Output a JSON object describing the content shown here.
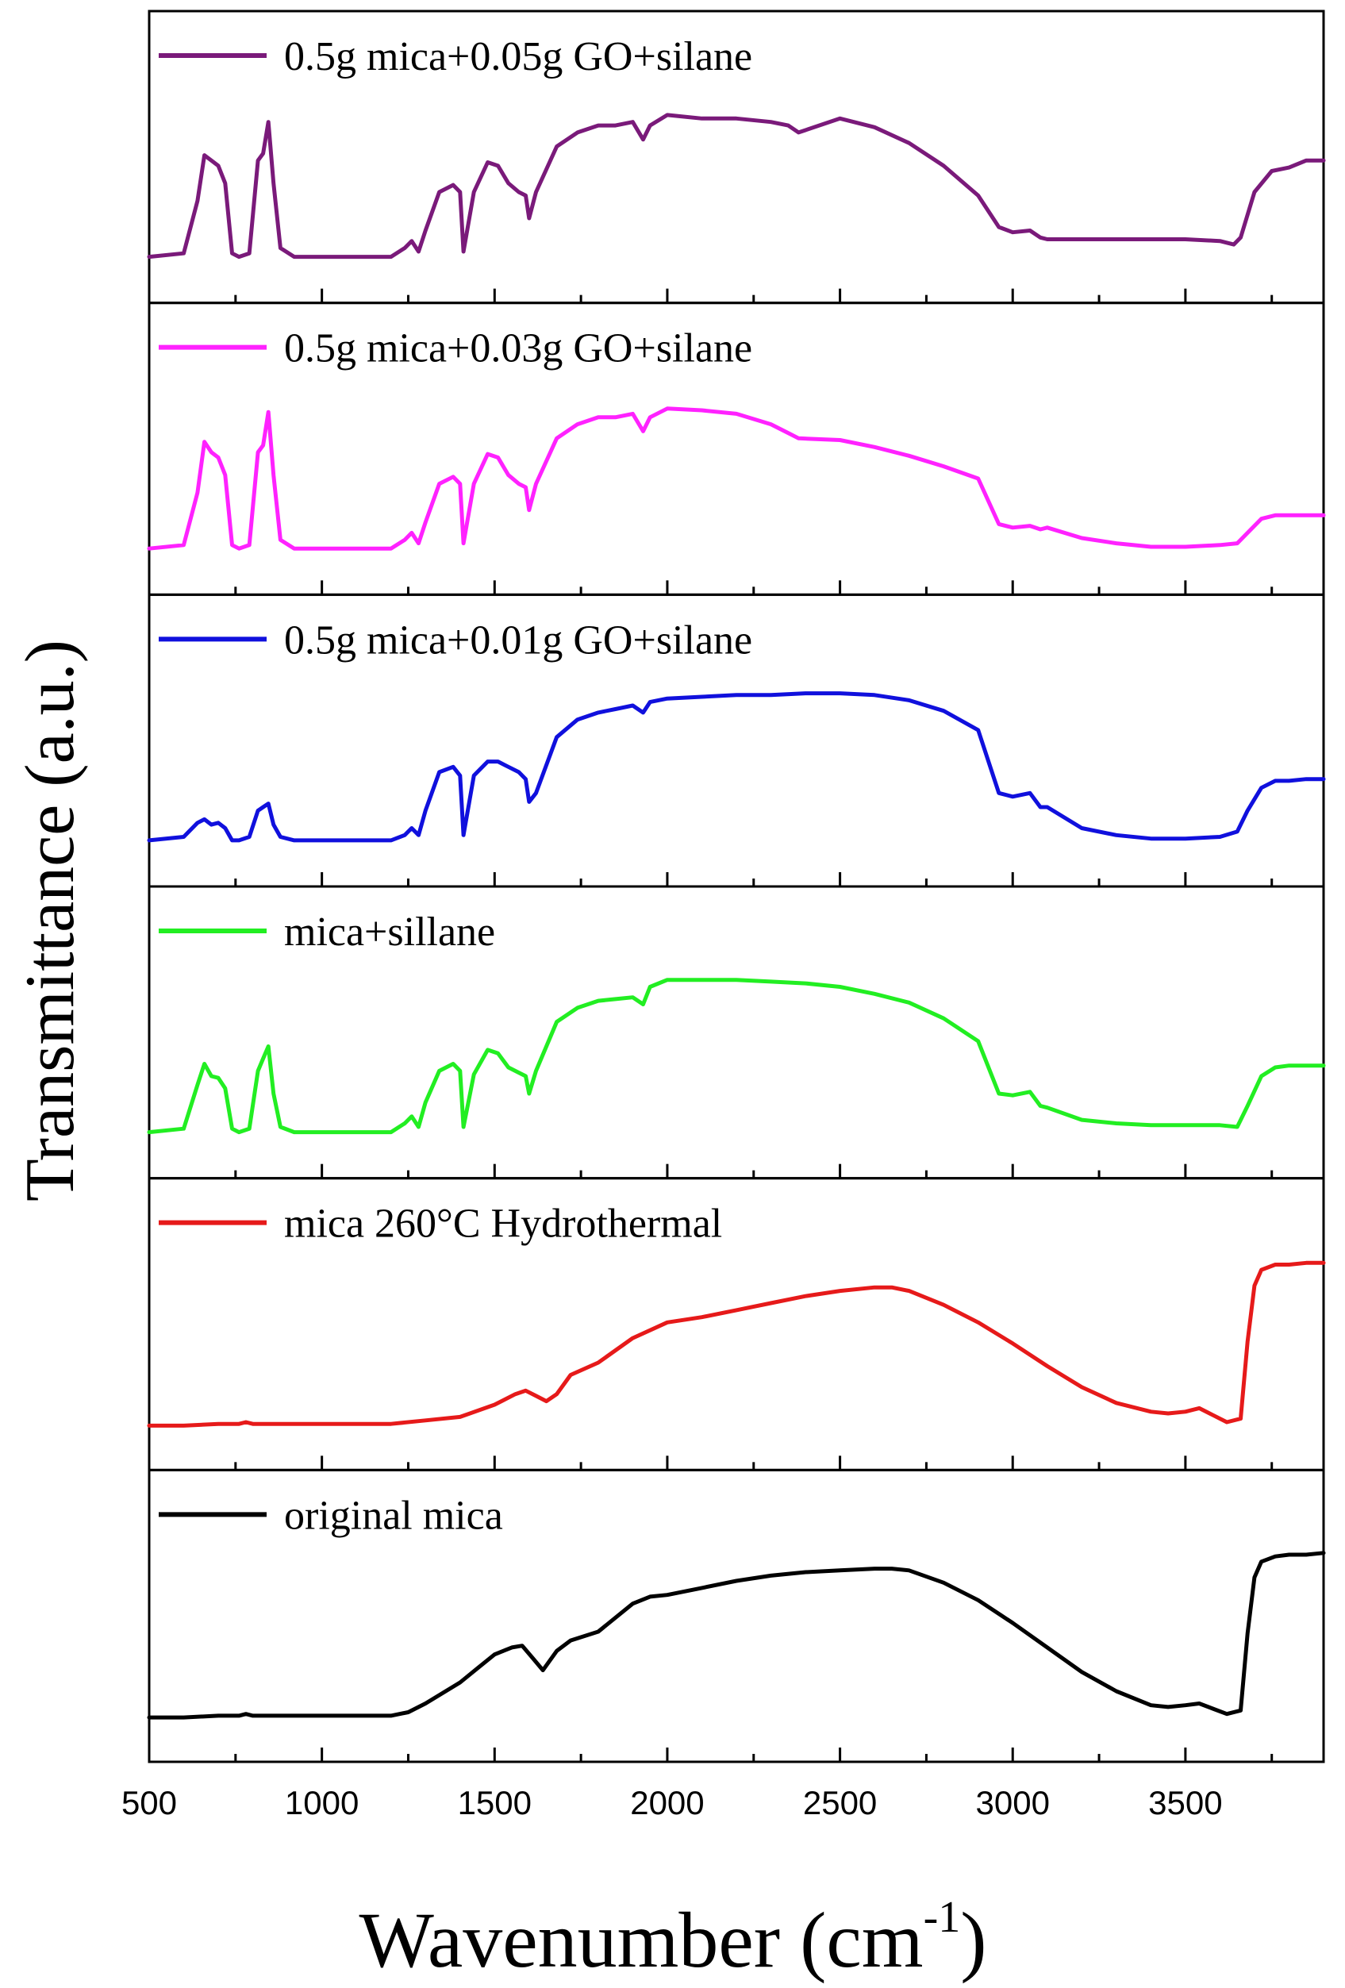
{
  "chart_data": {
    "type": "line",
    "title": "",
    "xlabel": "Wavenumber (cm",
    "xlabel_superscript": "-1",
    "xlabel_suffix": ")",
    "ylabel": "Transmittance (a.u.)",
    "xlim": [
      500,
      3900
    ],
    "x_ticks": [
      500,
      1000,
      1500,
      2000,
      2500,
      3000,
      3500
    ],
    "x_tick_labels": [
      "500",
      "1000",
      "1500",
      "2000",
      "2500",
      "3000",
      "3500"
    ],
    "ylim": [
      0,
      1
    ],
    "y_ticks_shown": false,
    "layout": "stacked-panels",
    "panels": [
      {
        "name": "0.5g mica+0.05g GO+silane",
        "color": "#7a1a7a",
        "x": [
          500,
          600,
          640,
          660,
          680,
          700,
          720,
          740,
          760,
          790,
          815,
          830,
          845,
          860,
          880,
          920,
          1000,
          1100,
          1200,
          1240,
          1260,
          1280,
          1300,
          1340,
          1380,
          1400,
          1410,
          1440,
          1480,
          1510,
          1540,
          1570,
          1590,
          1600,
          1620,
          1680,
          1740,
          1800,
          1850,
          1900,
          1930,
          1950,
          2000,
          2100,
          2200,
          2300,
          2350,
          2380,
          2500,
          2600,
          2700,
          2800,
          2900,
          2960,
          3000,
          3050,
          3080,
          3100,
          3200,
          3300,
          3400,
          3500,
          3600,
          3640,
          3660,
          3700,
          3750,
          3800,
          3850,
          3900
        ],
        "y": [
          0.03,
          0.05,
          0.35,
          0.61,
          0.58,
          0.55,
          0.45,
          0.05,
          0.03,
          0.05,
          0.58,
          0.62,
          0.8,
          0.45,
          0.08,
          0.03,
          0.03,
          0.03,
          0.03,
          0.08,
          0.12,
          0.06,
          0.18,
          0.4,
          0.44,
          0.4,
          0.06,
          0.4,
          0.57,
          0.55,
          0.45,
          0.4,
          0.38,
          0.25,
          0.4,
          0.66,
          0.74,
          0.78,
          0.78,
          0.8,
          0.7,
          0.78,
          0.84,
          0.82,
          0.82,
          0.8,
          0.78,
          0.74,
          0.82,
          0.77,
          0.68,
          0.55,
          0.38,
          0.2,
          0.17,
          0.18,
          0.14,
          0.13,
          0.13,
          0.13,
          0.13,
          0.13,
          0.12,
          0.1,
          0.14,
          0.4,
          0.52,
          0.54,
          0.58,
          0.58
        ]
      },
      {
        "name": "0.5g mica+0.03g GO+silane",
        "color": "#ff22ff",
        "x": [
          500,
          600,
          640,
          660,
          680,
          700,
          720,
          740,
          760,
          790,
          815,
          830,
          845,
          860,
          880,
          920,
          1000,
          1100,
          1200,
          1240,
          1260,
          1280,
          1300,
          1340,
          1380,
          1400,
          1410,
          1440,
          1480,
          1510,
          1540,
          1570,
          1590,
          1600,
          1620,
          1680,
          1740,
          1800,
          1850,
          1900,
          1930,
          1950,
          2000,
          2100,
          2200,
          2300,
          2350,
          2380,
          2500,
          2600,
          2700,
          2800,
          2900,
          2960,
          3000,
          3050,
          3080,
          3100,
          3200,
          3300,
          3400,
          3500,
          3600,
          3650,
          3680,
          3720,
          3760,
          3800,
          3850,
          3900
        ],
        "y": [
          0.03,
          0.05,
          0.35,
          0.64,
          0.58,
          0.55,
          0.45,
          0.05,
          0.03,
          0.05,
          0.58,
          0.62,
          0.81,
          0.45,
          0.08,
          0.03,
          0.03,
          0.03,
          0.03,
          0.08,
          0.12,
          0.06,
          0.18,
          0.4,
          0.44,
          0.4,
          0.06,
          0.4,
          0.57,
          0.55,
          0.45,
          0.4,
          0.38,
          0.25,
          0.4,
          0.66,
          0.74,
          0.78,
          0.78,
          0.8,
          0.7,
          0.78,
          0.83,
          0.82,
          0.8,
          0.74,
          0.69,
          0.66,
          0.65,
          0.61,
          0.56,
          0.5,
          0.43,
          0.17,
          0.15,
          0.16,
          0.14,
          0.15,
          0.09,
          0.06,
          0.04,
          0.04,
          0.05,
          0.06,
          0.12,
          0.2,
          0.22,
          0.22,
          0.22,
          0.22
        ]
      },
      {
        "name": "0.5g mica+0.01g GO+silane",
        "color": "#1010dd",
        "x": [
          500,
          600,
          640,
          660,
          680,
          700,
          720,
          740,
          760,
          790,
          815,
          830,
          845,
          860,
          880,
          920,
          1000,
          1100,
          1200,
          1240,
          1260,
          1280,
          1300,
          1340,
          1380,
          1400,
          1410,
          1440,
          1480,
          1510,
          1540,
          1570,
          1590,
          1600,
          1620,
          1680,
          1740,
          1800,
          1850,
          1900,
          1930,
          1950,
          2000,
          2100,
          2200,
          2300,
          2400,
          2500,
          2600,
          2700,
          2800,
          2900,
          2960,
          3000,
          3050,
          3080,
          3100,
          3200,
          3300,
          3400,
          3500,
          3600,
          3650,
          3680,
          3720,
          3760,
          3800,
          3850,
          3900
        ],
        "y": [
          0.03,
          0.05,
          0.13,
          0.15,
          0.12,
          0.13,
          0.1,
          0.03,
          0.03,
          0.05,
          0.2,
          0.22,
          0.24,
          0.12,
          0.05,
          0.03,
          0.03,
          0.03,
          0.03,
          0.06,
          0.1,
          0.06,
          0.2,
          0.42,
          0.45,
          0.4,
          0.06,
          0.4,
          0.48,
          0.48,
          0.45,
          0.42,
          0.38,
          0.25,
          0.3,
          0.62,
          0.72,
          0.76,
          0.78,
          0.8,
          0.76,
          0.82,
          0.84,
          0.85,
          0.86,
          0.86,
          0.87,
          0.87,
          0.86,
          0.83,
          0.77,
          0.66,
          0.3,
          0.28,
          0.3,
          0.22,
          0.22,
          0.1,
          0.06,
          0.04,
          0.04,
          0.05,
          0.08,
          0.2,
          0.33,
          0.37,
          0.37,
          0.38,
          0.38
        ]
      },
      {
        "name": "mica+sillane",
        "color": "#22ee22",
        "x": [
          500,
          600,
          640,
          660,
          680,
          700,
          720,
          740,
          760,
          790,
          815,
          830,
          845,
          860,
          880,
          920,
          1000,
          1100,
          1200,
          1240,
          1260,
          1280,
          1300,
          1340,
          1380,
          1400,
          1410,
          1440,
          1480,
          1510,
          1540,
          1570,
          1590,
          1600,
          1620,
          1680,
          1740,
          1800,
          1850,
          1900,
          1930,
          1950,
          2000,
          2100,
          2200,
          2300,
          2400,
          2500,
          2600,
          2700,
          2800,
          2900,
          2960,
          3000,
          3050,
          3080,
          3100,
          3200,
          3300,
          3400,
          3500,
          3600,
          3650,
          3680,
          3720,
          3760,
          3800,
          3850,
          3900
        ],
        "y": [
          0.03,
          0.05,
          0.3,
          0.42,
          0.35,
          0.34,
          0.28,
          0.05,
          0.03,
          0.05,
          0.38,
          0.45,
          0.52,
          0.25,
          0.06,
          0.03,
          0.03,
          0.03,
          0.03,
          0.08,
          0.12,
          0.06,
          0.2,
          0.38,
          0.42,
          0.38,
          0.06,
          0.36,
          0.5,
          0.48,
          0.4,
          0.37,
          0.35,
          0.25,
          0.38,
          0.66,
          0.74,
          0.78,
          0.79,
          0.8,
          0.76,
          0.86,
          0.9,
          0.9,
          0.9,
          0.89,
          0.88,
          0.86,
          0.82,
          0.77,
          0.68,
          0.55,
          0.25,
          0.24,
          0.26,
          0.18,
          0.17,
          0.1,
          0.08,
          0.07,
          0.07,
          0.07,
          0.06,
          0.18,
          0.35,
          0.4,
          0.41,
          0.41,
          0.41
        ]
      },
      {
        "name": "mica 260°C Hydrothermal",
        "color": "#e61a1a",
        "x": [
          500,
          600,
          700,
          760,
          780,
          800,
          900,
          1000,
          1100,
          1200,
          1300,
          1400,
          1500,
          1560,
          1590,
          1620,
          1650,
          1680,
          1720,
          1800,
          1900,
          2000,
          2100,
          2200,
          2300,
          2400,
          2500,
          2600,
          2650,
          2700,
          2800,
          2900,
          3000,
          3100,
          3200,
          3300,
          3400,
          3450,
          3500,
          3540,
          3580,
          3620,
          3660,
          3680,
          3700,
          3720,
          3760,
          3800,
          3850,
          3900
        ],
        "y": [
          0.02,
          0.02,
          0.03,
          0.03,
          0.04,
          0.03,
          0.03,
          0.03,
          0.03,
          0.03,
          0.05,
          0.07,
          0.14,
          0.2,
          0.22,
          0.19,
          0.16,
          0.2,
          0.31,
          0.38,
          0.52,
          0.61,
          0.64,
          0.68,
          0.72,
          0.76,
          0.79,
          0.81,
          0.81,
          0.79,
          0.71,
          0.61,
          0.49,
          0.36,
          0.24,
          0.15,
          0.1,
          0.09,
          0.1,
          0.12,
          0.08,
          0.04,
          0.06,
          0.5,
          0.82,
          0.91,
          0.94,
          0.94,
          0.95,
          0.95
        ]
      },
      {
        "name": "original mica",
        "color": "#000000",
        "x": [
          500,
          600,
          700,
          760,
          780,
          800,
          900,
          1000,
          1100,
          1200,
          1250,
          1300,
          1350,
          1400,
          1450,
          1500,
          1550,
          1580,
          1610,
          1640,
          1680,
          1720,
          1800,
          1900,
          1950,
          2000,
          2100,
          2200,
          2300,
          2400,
          2500,
          2600,
          2650,
          2700,
          2800,
          2900,
          3000,
          3100,
          3200,
          3300,
          3400,
          3450,
          3500,
          3540,
          3580,
          3620,
          3660,
          3680,
          3700,
          3720,
          3760,
          3800,
          3850,
          3900
        ],
        "y": [
          0.02,
          0.02,
          0.03,
          0.03,
          0.04,
          0.03,
          0.03,
          0.03,
          0.03,
          0.03,
          0.05,
          0.1,
          0.16,
          0.22,
          0.3,
          0.38,
          0.42,
          0.43,
          0.36,
          0.29,
          0.4,
          0.46,
          0.51,
          0.67,
          0.71,
          0.72,
          0.76,
          0.8,
          0.83,
          0.85,
          0.86,
          0.87,
          0.87,
          0.86,
          0.79,
          0.69,
          0.56,
          0.42,
          0.28,
          0.17,
          0.09,
          0.08,
          0.09,
          0.1,
          0.07,
          0.04,
          0.06,
          0.5,
          0.82,
          0.91,
          0.94,
          0.95,
          0.95,
          0.96
        ]
      }
    ]
  }
}
